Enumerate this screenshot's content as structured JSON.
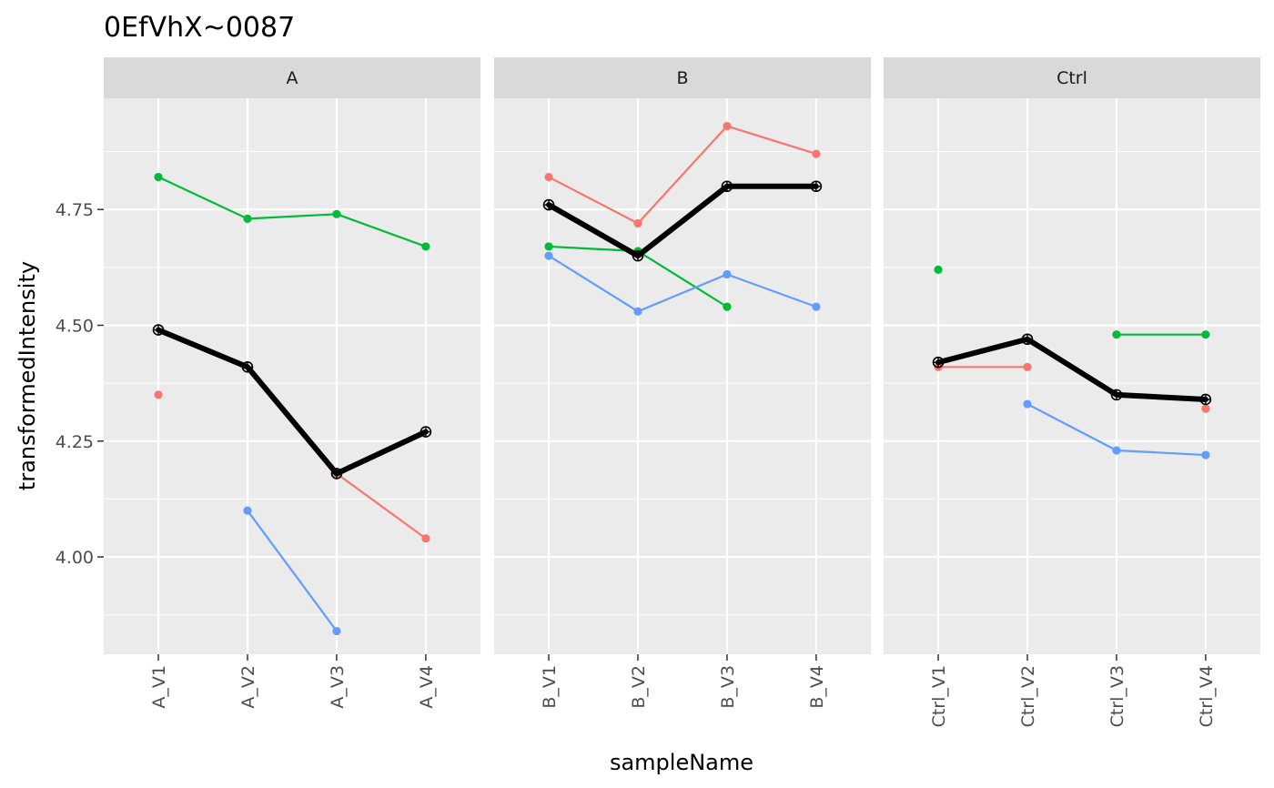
{
  "chart_data": {
    "type": "line",
    "title": "0EfVhX~0087",
    "xlabel": "sampleName",
    "ylabel": "transformedIntensity",
    "ylim": [
      3.79,
      4.99
    ],
    "y_ticks": [
      4.0,
      4.25,
      4.5,
      4.75
    ],
    "y_tick_labels": [
      "4.00",
      "4.25",
      "4.50",
      "4.75"
    ],
    "grid": true,
    "legend": "none",
    "summary_color": "#000000",
    "colors": {
      "red": "#F8766D",
      "green": "#00BA38",
      "blue": "#619CFF"
    },
    "panels": [
      {
        "name": "A",
        "categories": [
          "A_V1",
          "A_V2",
          "A_V3",
          "A_V4"
        ],
        "series": [
          {
            "color": "red",
            "values": [
              4.35,
              null,
              4.18,
              4.04
            ]
          },
          {
            "color": "green",
            "values": [
              4.82,
              4.73,
              4.74,
              4.67
            ]
          },
          {
            "color": "blue",
            "values": [
              null,
              4.1,
              3.84,
              null
            ]
          }
        ],
        "summary": [
          4.49,
          4.41,
          4.18,
          4.27
        ]
      },
      {
        "name": "B",
        "categories": [
          "B_V1",
          "B_V2",
          "B_V3",
          "B_V4"
        ],
        "series": [
          {
            "color": "red",
            "values": [
              4.82,
              4.72,
              4.93,
              4.87
            ]
          },
          {
            "color": "green",
            "values": [
              4.67,
              4.66,
              4.54,
              null
            ]
          },
          {
            "color": "blue",
            "values": [
              4.65,
              4.53,
              4.61,
              4.54
            ]
          }
        ],
        "summary": [
          4.76,
          4.65,
          4.8,
          4.8
        ]
      },
      {
        "name": "Ctrl",
        "categories": [
          "Ctrl_V1",
          "Ctrl_V2",
          "Ctrl_V3",
          "Ctrl_V4"
        ],
        "series": [
          {
            "color": "red",
            "values": [
              4.41,
              4.41,
              null,
              4.32
            ]
          },
          {
            "color": "green",
            "values": [
              4.62,
              null,
              4.48,
              4.48
            ]
          },
          {
            "color": "blue",
            "values": [
              null,
              4.33,
              4.23,
              4.22
            ]
          }
        ],
        "summary": [
          4.42,
          4.47,
          4.35,
          4.34
        ]
      }
    ]
  }
}
